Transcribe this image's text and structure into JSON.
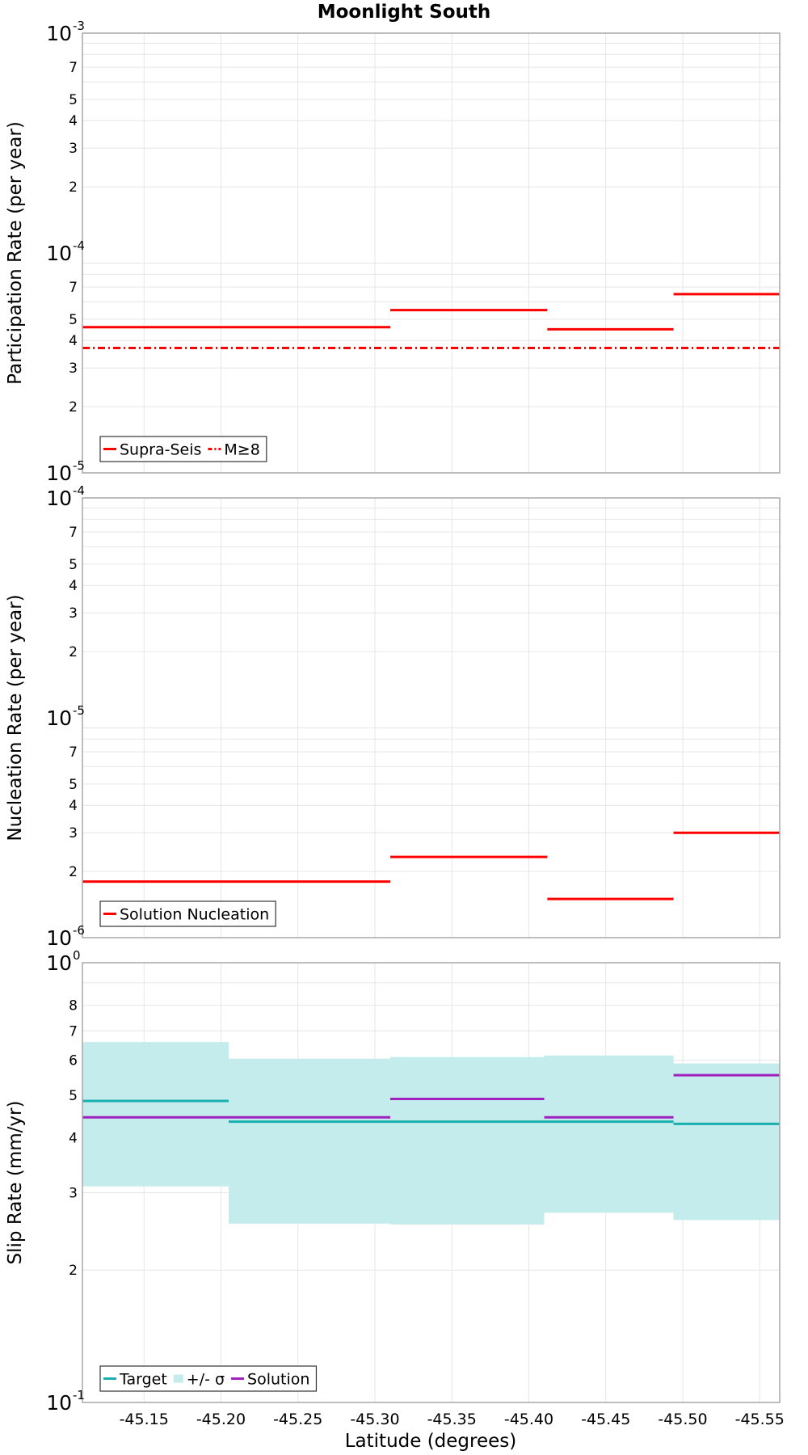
{
  "figure_title": "Moonlight South",
  "x_axis_label": "Latitude (degrees)",
  "colors": {
    "supra_seis": "#ff0000",
    "m_ge_8": "#ff0000",
    "solution_nucleation": "#ff0000",
    "target": "#1aafaf",
    "sigma_band": "#c4ecec",
    "solution": "#a020c0",
    "grid": "#e6e6e6",
    "frame": "#a8a8a8"
  },
  "chart_data": [
    {
      "type": "line",
      "subtype": "step",
      "yscale": "log",
      "ylabel": "Participation Rate (per year)",
      "xlim": [
        -45.11,
        -45.563
      ],
      "ylim": [
        1e-05,
        0.001
      ],
      "decades": [
        {
          "base": "10",
          "exp": "-5"
        },
        {
          "base": "10",
          "exp": "-4"
        },
        {
          "base": "10",
          "exp": "-3"
        }
      ],
      "minor_labels": [
        "2",
        "3",
        "4",
        "5",
        "7"
      ],
      "legend": [
        "Supra-Seis",
        "M≥8"
      ],
      "legend_position": "bottom-left",
      "series": [
        {
          "name": "Supra-Seis",
          "style": "solid",
          "segments": [
            {
              "x": [
                -45.11,
                -45.31
              ],
              "y": 4.6e-05
            },
            {
              "x": [
                -45.31,
                -45.412
              ],
              "y": 5.5e-05
            },
            {
              "x": [
                -45.412,
                -45.494
              ],
              "y": 4.5e-05
            },
            {
              "x": [
                -45.494,
                -45.563
              ],
              "y": 6.5e-05
            }
          ]
        },
        {
          "name": "M≥8",
          "style": "dash-dot",
          "segments": [
            {
              "x": [
                -45.11,
                -45.563
              ],
              "y": 3.7e-05
            }
          ]
        }
      ]
    },
    {
      "type": "line",
      "subtype": "step",
      "yscale": "log",
      "ylabel": "Nucleation Rate (per year)",
      "xlim": [
        -45.11,
        -45.563
      ],
      "ylim": [
        1e-06,
        0.0001
      ],
      "decades": [
        {
          "base": "10",
          "exp": "-6"
        },
        {
          "base": "10",
          "exp": "-5"
        },
        {
          "base": "10",
          "exp": "-4"
        }
      ],
      "minor_labels": [
        "2",
        "3",
        "4",
        "5",
        "7"
      ],
      "legend": [
        "Solution Nucleation"
      ],
      "legend_position": "bottom-left",
      "series": [
        {
          "name": "Solution Nucleation",
          "style": "solid",
          "segments": [
            {
              "x": [
                -45.11,
                -45.31
              ],
              "y": 1.8e-06
            },
            {
              "x": [
                -45.31,
                -45.412
              ],
              "y": 2.33e-06
            },
            {
              "x": [
                -45.412,
                -45.494
              ],
              "y": 1.5e-06
            },
            {
              "x": [
                -45.494,
                -45.563
              ],
              "y": 3e-06
            }
          ]
        }
      ]
    },
    {
      "type": "line",
      "subtype": "step",
      "yscale": "log",
      "ylabel": "Slip Rate (mm/yr)",
      "xlabel": "Latitude (degrees)",
      "xlim": [
        -45.11,
        -45.563
      ],
      "ylim": [
        0.1,
        1
      ],
      "decades": [
        {
          "base": "10",
          "exp": "-1"
        },
        {
          "base": "10",
          "exp": "0"
        }
      ],
      "minor_labels": [
        "2",
        "3",
        "4",
        "5",
        "6",
        "7",
        "8"
      ],
      "x_ticks": [
        "-45.15",
        "-45.20",
        "-45.25",
        "-45.30",
        "-45.35",
        "-45.40",
        "-45.45",
        "-45.50",
        "-45.55"
      ],
      "legend": [
        "Target",
        "+/- σ",
        "Solution"
      ],
      "legend_position": "bottom-left",
      "band": {
        "name": "+/- σ",
        "segments": [
          {
            "x": [
              -45.11,
              -45.205
            ],
            "low": 0.31,
            "high": 0.66
          },
          {
            "x": [
              -45.205,
              -45.31
            ],
            "low": 0.255,
            "high": 0.605
          },
          {
            "x": [
              -45.31,
              -45.41
            ],
            "low": 0.254,
            "high": 0.61
          },
          {
            "x": [
              -45.41,
              -45.494
            ],
            "low": 0.27,
            "high": 0.615
          },
          {
            "x": [
              -45.494,
              -45.563
            ],
            "low": 0.26,
            "high": 0.59
          }
        ]
      },
      "series": [
        {
          "name": "Target",
          "style": "solid",
          "segments": [
            {
              "x": [
                -45.11,
                -45.205
              ],
              "y": 0.485
            },
            {
              "x": [
                -45.205,
                -45.41
              ],
              "y": 0.435
            },
            {
              "x": [
                -45.41,
                -45.494
              ],
              "y": 0.435
            },
            {
              "x": [
                -45.494,
                -45.563
              ],
              "y": 0.43
            }
          ]
        },
        {
          "name": "Solution",
          "style": "solid",
          "segments": [
            {
              "x": [
                -45.11,
                -45.31
              ],
              "y": 0.445
            },
            {
              "x": [
                -45.31,
                -45.41
              ],
              "y": 0.49
            },
            {
              "x": [
                -45.41,
                -45.494
              ],
              "y": 0.445
            },
            {
              "x": [
                -45.494,
                -45.563
              ],
              "y": 0.555
            }
          ]
        }
      ]
    }
  ]
}
